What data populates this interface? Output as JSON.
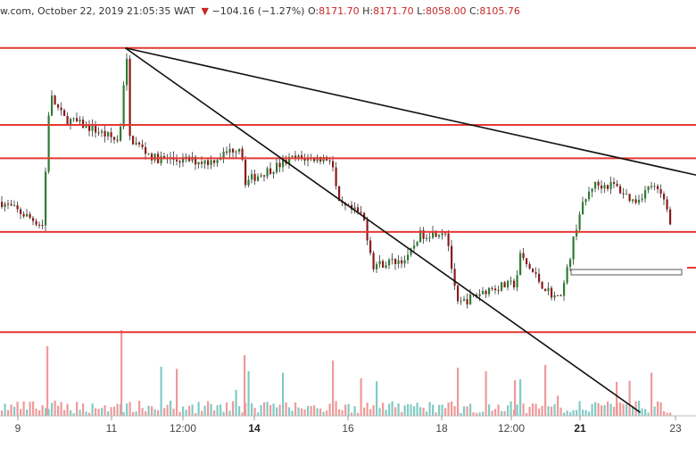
{
  "header": {
    "source": "w.com, October 22, 2019 21:05:35 WAT",
    "change": "−104.16 (−1.27%)",
    "open_label": "O:",
    "open": "8171.70",
    "high_label": "H:",
    "high": "8171.70",
    "low_label": "L:",
    "low": "8058.00",
    "close_label": "C:",
    "close": "8105.76"
  },
  "colors": {
    "up": "#2e7d32",
    "down": "#8b1a1a",
    "level_line": "#e53935",
    "trend_line": "#111111",
    "vol_up": "#80cbc4",
    "vol_down": "#ef9a9a"
  },
  "chart_data": {
    "type": "candlestick",
    "title": "",
    "xlabel": "",
    "ylabel": "",
    "ylim": [
      7700,
      8850
    ],
    "x_tick_labels": [
      {
        "label": "9",
        "bold": false
      },
      {
        "label": "11",
        "bold": false
      },
      {
        "label": "12:00",
        "bold": false
      },
      {
        "label": "14",
        "bold": true
      },
      {
        "label": "16",
        "bold": false
      },
      {
        "label": "18",
        "bold": false
      },
      {
        "label": "12:00",
        "bold": false
      },
      {
        "label": "21",
        "bold": true
      },
      {
        "label": "23",
        "bold": false
      }
    ],
    "horizontal_levels": [
      8800,
      8570,
      8470,
      8250,
      7950
    ],
    "trend_lines": [
      {
        "from": [
          0.18,
          8800
        ],
        "to": [
          1.0,
          8420
        ]
      },
      {
        "from": [
          0.18,
          8800
        ],
        "to": [
          0.92,
          7710
        ]
      }
    ],
    "anchors": [
      [
        0.0,
        8340
      ],
      [
        0.06,
        8270
      ],
      [
        0.07,
        8660
      ],
      [
        0.09,
        8590
      ],
      [
        0.13,
        8560
      ],
      [
        0.17,
        8520
      ],
      [
        0.18,
        8800
      ],
      [
        0.185,
        8530
      ],
      [
        0.22,
        8470
      ],
      [
        0.3,
        8460
      ],
      [
        0.345,
        8510
      ],
      [
        0.35,
        8400
      ],
      [
        0.42,
        8470
      ],
      [
        0.475,
        8470
      ],
      [
        0.485,
        8330
      ],
      [
        0.52,
        8300
      ],
      [
        0.535,
        8150
      ],
      [
        0.585,
        8170
      ],
      [
        0.6,
        8240
      ],
      [
        0.64,
        8255
      ],
      [
        0.655,
        8030
      ],
      [
        0.7,
        8080
      ],
      [
        0.74,
        8095
      ],
      [
        0.745,
        8180
      ],
      [
        0.78,
        8085
      ],
      [
        0.8,
        8050
      ],
      [
        0.81,
        8100
      ],
      [
        0.83,
        8300
      ],
      [
        0.85,
        8390
      ],
      [
        0.88,
        8390
      ],
      [
        0.91,
        8340
      ],
      [
        0.935,
        8390
      ],
      [
        0.955,
        8340
      ],
      [
        0.965,
        8255
      ]
    ],
    "volume_ylim": [
      0,
      100
    ]
  }
}
